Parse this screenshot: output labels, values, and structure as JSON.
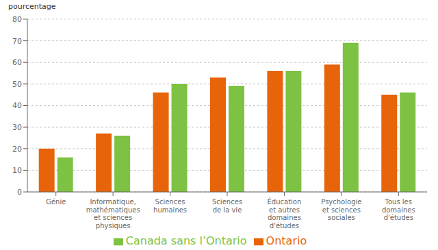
{
  "chart_data": {
    "type": "bar",
    "ylabel": "pourcentage",
    "categories": [
      "Génie",
      "Informatique,\nmathématiques\net sciences\nphysiques",
      "Sciences\nhumaines",
      "Sciences\nde la vie",
      "Éducation\net autres\ndomaines\nd'études",
      "Psychologie\net sciences\nsociales",
      "Tous les\ndomaines\nd'études"
    ],
    "series": [
      {
        "name": "Ontario",
        "color": "#E8640A",
        "values": [
          20,
          27,
          46,
          53,
          56,
          59,
          45
        ]
      },
      {
        "name": "Canada sans l’Ontario",
        "color": "#7DC242",
        "values": [
          16,
          26,
          50,
          49,
          56,
          69,
          46
        ]
      }
    ],
    "ylim": [
      0,
      80
    ],
    "yticks": [
      0,
      10,
      20,
      30,
      40,
      50,
      60,
      70,
      80
    ],
    "grid": true,
    "legend": "bottom"
  }
}
